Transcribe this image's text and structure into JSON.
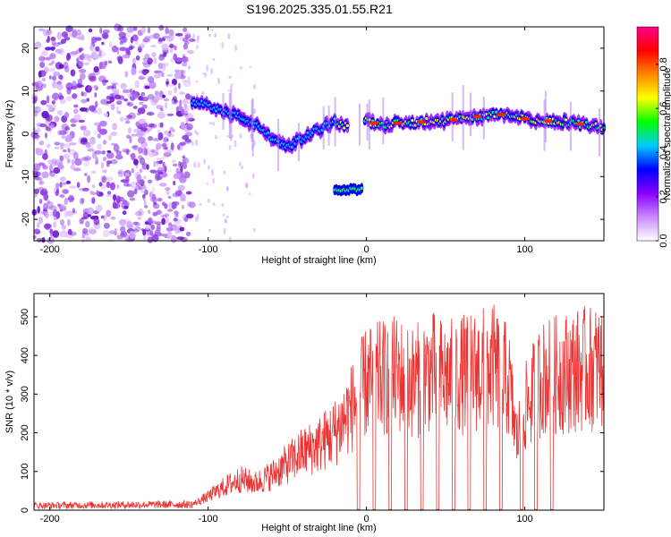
{
  "chart_data": [
    {
      "type": "heatmap",
      "title": "S196.2025.335.01.55.R21",
      "xlabel": "Height of straight line (km)",
      "ylabel": "Frequency (Hz)",
      "xlim": [
        -210,
        150
      ],
      "ylim": [
        -25,
        25
      ],
      "x_ticks": [
        -200,
        -100,
        0,
        100
      ],
      "y_ticks": [
        -20,
        -10,
        0,
        10,
        20
      ],
      "colorbar": {
        "label": "Normalized spectral amplitude",
        "range": [
          0,
          0.97
        ],
        "ticks": [
          0.0,
          0.2,
          0.4,
          0.6,
          0.8
        ],
        "colors": [
          "#ffffff",
          "#cc88ff",
          "#8800ff",
          "#0000ff",
          "#00ccff",
          "#00ff00",
          "#ffff00",
          "#ff8800",
          "#ff0000",
          "#ff0088"
        ]
      },
      "noise_region_x": [
        -210,
        -110
      ],
      "ridge": {
        "x": [
          -110,
          -100,
          -90,
          -80,
          -70,
          -60,
          -50,
          -40,
          -30,
          -20,
          -15,
          0,
          10,
          20,
          30,
          40,
          50,
          60,
          70,
          80,
          90,
          100,
          110,
          120,
          130,
          140,
          150
        ],
        "freq": [
          7,
          7,
          5,
          4,
          2,
          -1,
          -3,
          -1,
          1,
          3,
          2,
          3,
          2,
          2.5,
          2.5,
          3,
          3,
          3.5,
          4,
          4.5,
          4.5,
          3.5,
          3,
          3,
          2.5,
          2,
          1.5
        ]
      },
      "isolated_segment": {
        "x": [
          -20,
          -3
        ],
        "freq": -13
      }
    },
    {
      "type": "line",
      "xlabel": "Height of straight line (km)",
      "ylabel": "SNR (10 * v/v)",
      "xlim": [
        -210,
        150
      ],
      "ylim": [
        0,
        560
      ],
      "x_ticks": [
        -200,
        -100,
        0,
        100
      ],
      "y_ticks": [
        0,
        100,
        200,
        300,
        400,
        500
      ],
      "series": [
        {
          "name": "SNR",
          "color": "#ee3333",
          "envelope_x": [
            -210,
            -110,
            -100,
            -90,
            -80,
            -70,
            -60,
            -50,
            -40,
            -30,
            -20,
            -10,
            0,
            10,
            20,
            30,
            40,
            50,
            60,
            70,
            80,
            90,
            95,
            100,
            110,
            120,
            130,
            140,
            150
          ],
          "envelope_y": [
            12,
            15,
            35,
            60,
            80,
            70,
            90,
            120,
            150,
            170,
            200,
            260,
            330,
            340,
            350,
            330,
            360,
            340,
            350,
            360,
            370,
            330,
            180,
            260,
            340,
            350,
            360,
            365,
            370
          ],
          "dropout_x": [
            -5,
            5,
            15,
            25,
            35,
            45,
            55,
            65,
            75,
            85,
            98,
            107,
            117
          ]
        }
      ]
    }
  ]
}
